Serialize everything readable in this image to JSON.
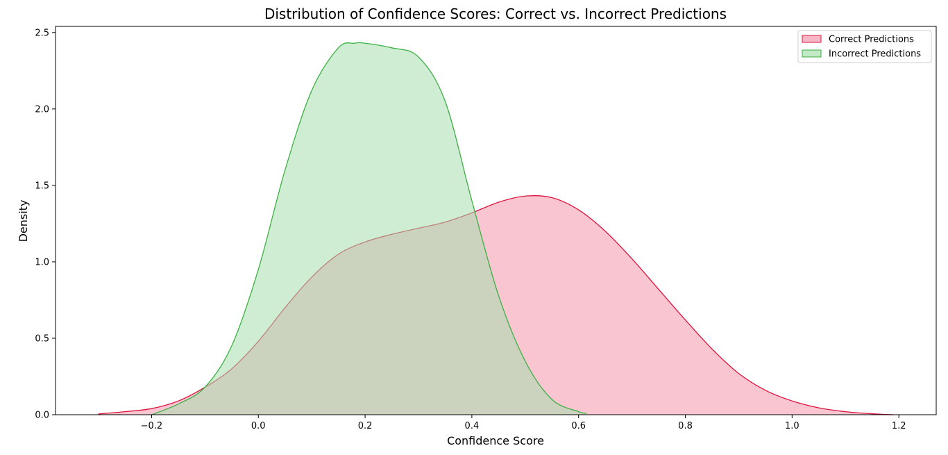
{
  "chart_data": {
    "type": "area",
    "title": "Distribution of Confidence Scores: Correct vs. Incorrect Predictions",
    "xlabel": "Confidence Score",
    "ylabel": "Density",
    "xlim": [
      -0.38,
      1.27
    ],
    "ylim": [
      0,
      2.54
    ],
    "xticks": [
      -0.2,
      0.0,
      0.2,
      0.4,
      0.6,
      0.8,
      1.0,
      1.2
    ],
    "xtick_labels": [
      "−0.2",
      "0.0",
      "0.2",
      "0.4",
      "0.6",
      "0.8",
      "1.0",
      "1.2"
    ],
    "yticks": [
      0.0,
      0.5,
      1.0,
      1.5,
      2.0,
      2.5
    ],
    "ytick_labels": [
      "0.0",
      "0.5",
      "1.0",
      "1.5",
      "2.0",
      "2.5"
    ],
    "grid": false,
    "legend_position": "top-right",
    "series": [
      {
        "name": "Correct Predictions",
        "line_color": "#dc143c",
        "fill_color": "#f4a6b9",
        "fill_opacity": 0.65,
        "x": [
          -0.3,
          -0.25,
          -0.2,
          -0.15,
          -0.1,
          -0.05,
          0.0,
          0.05,
          0.1,
          0.15,
          0.2,
          0.25,
          0.3,
          0.35,
          0.4,
          0.45,
          0.5,
          0.55,
          0.6,
          0.65,
          0.7,
          0.75,
          0.8,
          0.85,
          0.9,
          0.95,
          1.0,
          1.05,
          1.1,
          1.15,
          1.19
        ],
        "y": [
          0.005,
          0.02,
          0.04,
          0.09,
          0.18,
          0.3,
          0.48,
          0.7,
          0.9,
          1.05,
          1.13,
          1.18,
          1.22,
          1.26,
          1.32,
          1.39,
          1.43,
          1.42,
          1.34,
          1.2,
          1.02,
          0.82,
          0.62,
          0.43,
          0.27,
          0.16,
          0.09,
          0.045,
          0.02,
          0.006,
          0.0
        ]
      },
      {
        "name": "Incorrect Predictions",
        "line_color": "#3cb043",
        "fill_color": "#a6dfae",
        "fill_opacity": 0.55,
        "x": [
          -0.2,
          -0.15,
          -0.1,
          -0.05,
          0.0,
          0.05,
          0.1,
          0.15,
          0.18,
          0.2,
          0.25,
          0.3,
          0.35,
          0.4,
          0.45,
          0.5,
          0.55,
          0.6,
          0.615
        ],
        "y": [
          0.0,
          0.07,
          0.18,
          0.45,
          0.95,
          1.6,
          2.12,
          2.4,
          2.43,
          2.43,
          2.4,
          2.34,
          2.05,
          1.4,
          0.78,
          0.35,
          0.1,
          0.02,
          0.01
        ]
      }
    ]
  }
}
